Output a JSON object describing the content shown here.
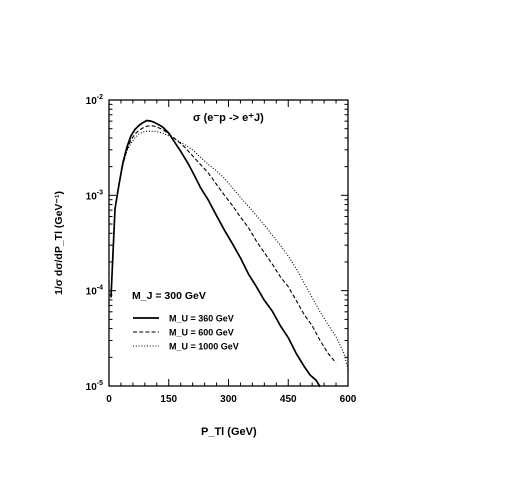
{
  "chart_data": {
    "type": "line",
    "title": "σ (e⁻p -> e⁺J)",
    "annotation": "M_J = 300 GeV",
    "xlabel": "P_Tl (GeV)",
    "ylabel": "1/σ dσ/dP_Tl (GeV⁻¹)",
    "xlim": [
      0,
      600
    ],
    "ylim": [
      1e-05,
      0.01
    ],
    "yscale": "log",
    "grid": false,
    "legend_position": "bottom-left",
    "x_ticks": [
      0,
      150,
      300,
      450,
      600
    ],
    "y_ticks": [
      {
        "value": 0.01,
        "mant": "10",
        "exp": "-2"
      },
      {
        "value": 0.001,
        "mant": "10",
        "exp": "-3"
      },
      {
        "value": 0.0001,
        "mant": "10",
        "exp": "-4"
      },
      {
        "value": 1e-05,
        "mant": "10",
        "exp": "-5"
      }
    ],
    "series": [
      {
        "name": "M_U = 360 GeV",
        "style": "solid",
        "x": [
          5,
          15,
          25,
          35,
          45,
          55,
          65,
          75,
          85,
          95,
          105,
          115,
          125,
          135,
          150,
          165,
          180,
          200,
          215,
          230,
          250,
          270,
          290,
          310,
          330,
          350,
          370,
          390,
          410,
          430,
          450,
          470,
          490,
          505,
          520,
          530
        ],
        "y": [
          8.5e-05,
          0.00072,
          0.0013,
          0.0022,
          0.0032,
          0.0042,
          0.0049,
          0.0054,
          0.0058,
          0.0061,
          0.006,
          0.0058,
          0.0055,
          0.0052,
          0.0045,
          0.0036,
          0.0029,
          0.0021,
          0.0016,
          0.0012,
          0.00088,
          0.00061,
          0.00043,
          0.00031,
          0.00022,
          0.00015,
          0.00011,
          7.9e-05,
          6.1e-05,
          4.3e-05,
          3.2e-05,
          2.2e-05,
          1.6e-05,
          1.3e-05,
          1.15e-05,
          9.8e-06
        ]
      },
      {
        "name": "M_U = 600 GeV",
        "style": "dashed",
        "x": [
          5,
          15,
          25,
          35,
          45,
          55,
          65,
          75,
          85,
          95,
          105,
          115,
          125,
          135,
          150,
          170,
          190,
          210,
          230,
          250,
          270,
          290,
          310,
          330,
          350,
          370,
          390,
          410,
          430,
          450,
          470,
          490,
          510,
          530,
          550,
          570
        ],
        "y": [
          8.5e-05,
          0.00072,
          0.0013,
          0.0021,
          0.003,
          0.0038,
          0.0044,
          0.0048,
          0.0051,
          0.0053,
          0.0054,
          0.0053,
          0.0051,
          0.0049,
          0.0044,
          0.0038,
          0.0032,
          0.0026,
          0.0021,
          0.0017,
          0.0013,
          0.001,
          0.00078,
          0.00059,
          0.00046,
          0.00033,
          0.00025,
          0.00019,
          0.00014,
          0.00011,
          7.9e-05,
          5.6e-05,
          4.3e-05,
          3e-05,
          2.2e-05,
          1.75e-05
        ]
      },
      {
        "name": "M_U = 1000 GeV",
        "style": "dotted",
        "x": [
          5,
          15,
          25,
          35,
          45,
          55,
          65,
          75,
          85,
          95,
          105,
          115,
          125,
          135,
          150,
          170,
          190,
          210,
          230,
          250,
          270,
          290,
          310,
          330,
          350,
          370,
          390,
          410,
          430,
          450,
          470,
          490,
          510,
          530,
          550,
          570,
          590,
          600
        ],
        "y": [
          8.5e-05,
          0.00072,
          0.0013,
          0.0021,
          0.0029,
          0.0035,
          0.004,
          0.0044,
          0.0046,
          0.0047,
          0.0047,
          0.0047,
          0.0046,
          0.0045,
          0.0042,
          0.0038,
          0.0034,
          0.003,
          0.0025,
          0.0021,
          0.0018,
          0.0015,
          0.0012,
          0.00095,
          0.00077,
          0.00061,
          0.00049,
          0.00038,
          0.0003,
          0.00023,
          0.00017,
          0.00012,
          8.5e-05,
          6e-05,
          4.4e-05,
          3.3e-05,
          2.2e-05,
          1.5e-05
        ]
      }
    ]
  }
}
